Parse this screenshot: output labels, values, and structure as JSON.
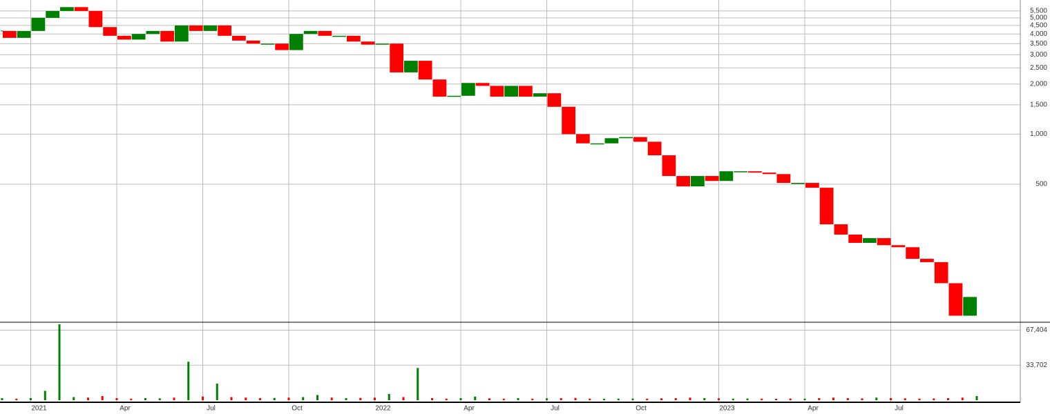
{
  "chart_data": [
    {
      "type": "candlestick",
      "log_scale": true,
      "grid": true,
      "up_color": "#008000",
      "down_color": "#ff0000",
      "categories": [
        null,
        null,
        "2021",
        null,
        null,
        null,
        null,
        null,
        "Apr",
        null,
        null,
        null,
        null,
        null,
        "Jul",
        null,
        null,
        null,
        null,
        null,
        "Oct",
        null,
        null,
        null,
        null,
        null,
        "2022",
        null,
        null,
        null,
        null,
        null,
        "Apr",
        null,
        null,
        null,
        null,
        null,
        "Jul",
        null,
        null,
        null,
        null,
        null,
        "Oct",
        null,
        null,
        null,
        null,
        null,
        "2023",
        null,
        null,
        null,
        null,
        null,
        "Apr",
        null,
        null,
        null,
        null,
        null,
        "Jul",
        null,
        null,
        null,
        null,
        null,
        null
      ],
      "values": [
        4170,
        3790,
        4170,
        5000,
        5500,
        5800,
        5500,
        4400,
        3900,
        3700,
        4000,
        4170,
        3600,
        4500,
        4170,
        4500,
        3900,
        3650,
        3500,
        3500,
        3200,
        4000,
        4170,
        3900,
        3900,
        3600,
        3450,
        3500,
        2350,
        2760,
        2130,
        1680,
        1700,
        2030,
        1950,
        1680,
        1950,
        1680,
        1760,
        1460,
        1000,
        880,
        880,
        945,
        960,
        900,
        746,
        560,
        485,
        560,
        523,
        598,
        598,
        587,
        575,
        509,
        509,
        476,
        287,
        249,
        222,
        237,
        215,
        209,
        178,
        170,
        127,
        81,
        105
      ],
      "ylim": [
        74,
        6400
      ],
      "yticks": [
        {
          "value": 5500,
          "label": "5,500"
        },
        {
          "value": 5000,
          "label": "5,000"
        },
        {
          "value": 4500,
          "label": "4,500"
        },
        {
          "value": 4000,
          "label": "4,000"
        },
        {
          "value": 3500,
          "label": "3,500"
        },
        {
          "value": 3000,
          "label": "3,000"
        },
        {
          "value": 2500,
          "label": "2,500"
        },
        {
          "value": 2000,
          "label": "2,000"
        },
        {
          "value": 1500,
          "label": "1,500"
        },
        {
          "value": 1000,
          "label": "1,000"
        },
        500
      ]
    },
    {
      "type": "bar",
      "grid": true,
      "values": [
        2000,
        1500,
        2000,
        9000,
        73000,
        3000,
        2500,
        4000,
        2000,
        1500,
        2000,
        1800,
        2500,
        37000,
        3500,
        16000,
        3000,
        2500,
        2000,
        2200,
        2500,
        3000,
        5000,
        2500,
        2000,
        2200,
        2500,
        6000,
        3000,
        31000,
        2000,
        1500,
        2000,
        3500,
        1800,
        1500,
        2000,
        1500,
        1800,
        2000,
        2200,
        1500,
        1400,
        1500,
        1600,
        1500,
        1800,
        2000,
        2500,
        2000,
        1800,
        1500,
        1600,
        1500,
        1400,
        1600,
        1500,
        2000,
        2500,
        2000,
        1800,
        2500,
        2000,
        1800,
        1600,
        1700,
        2000,
        2500,
        4000
      ],
      "ylim": [
        0,
        75000
      ],
      "yticks": [
        {
          "value": 33702,
          "label": "33,702"
        },
        {
          "value": 67404,
          "label": "67,404"
        }
      ]
    }
  ]
}
